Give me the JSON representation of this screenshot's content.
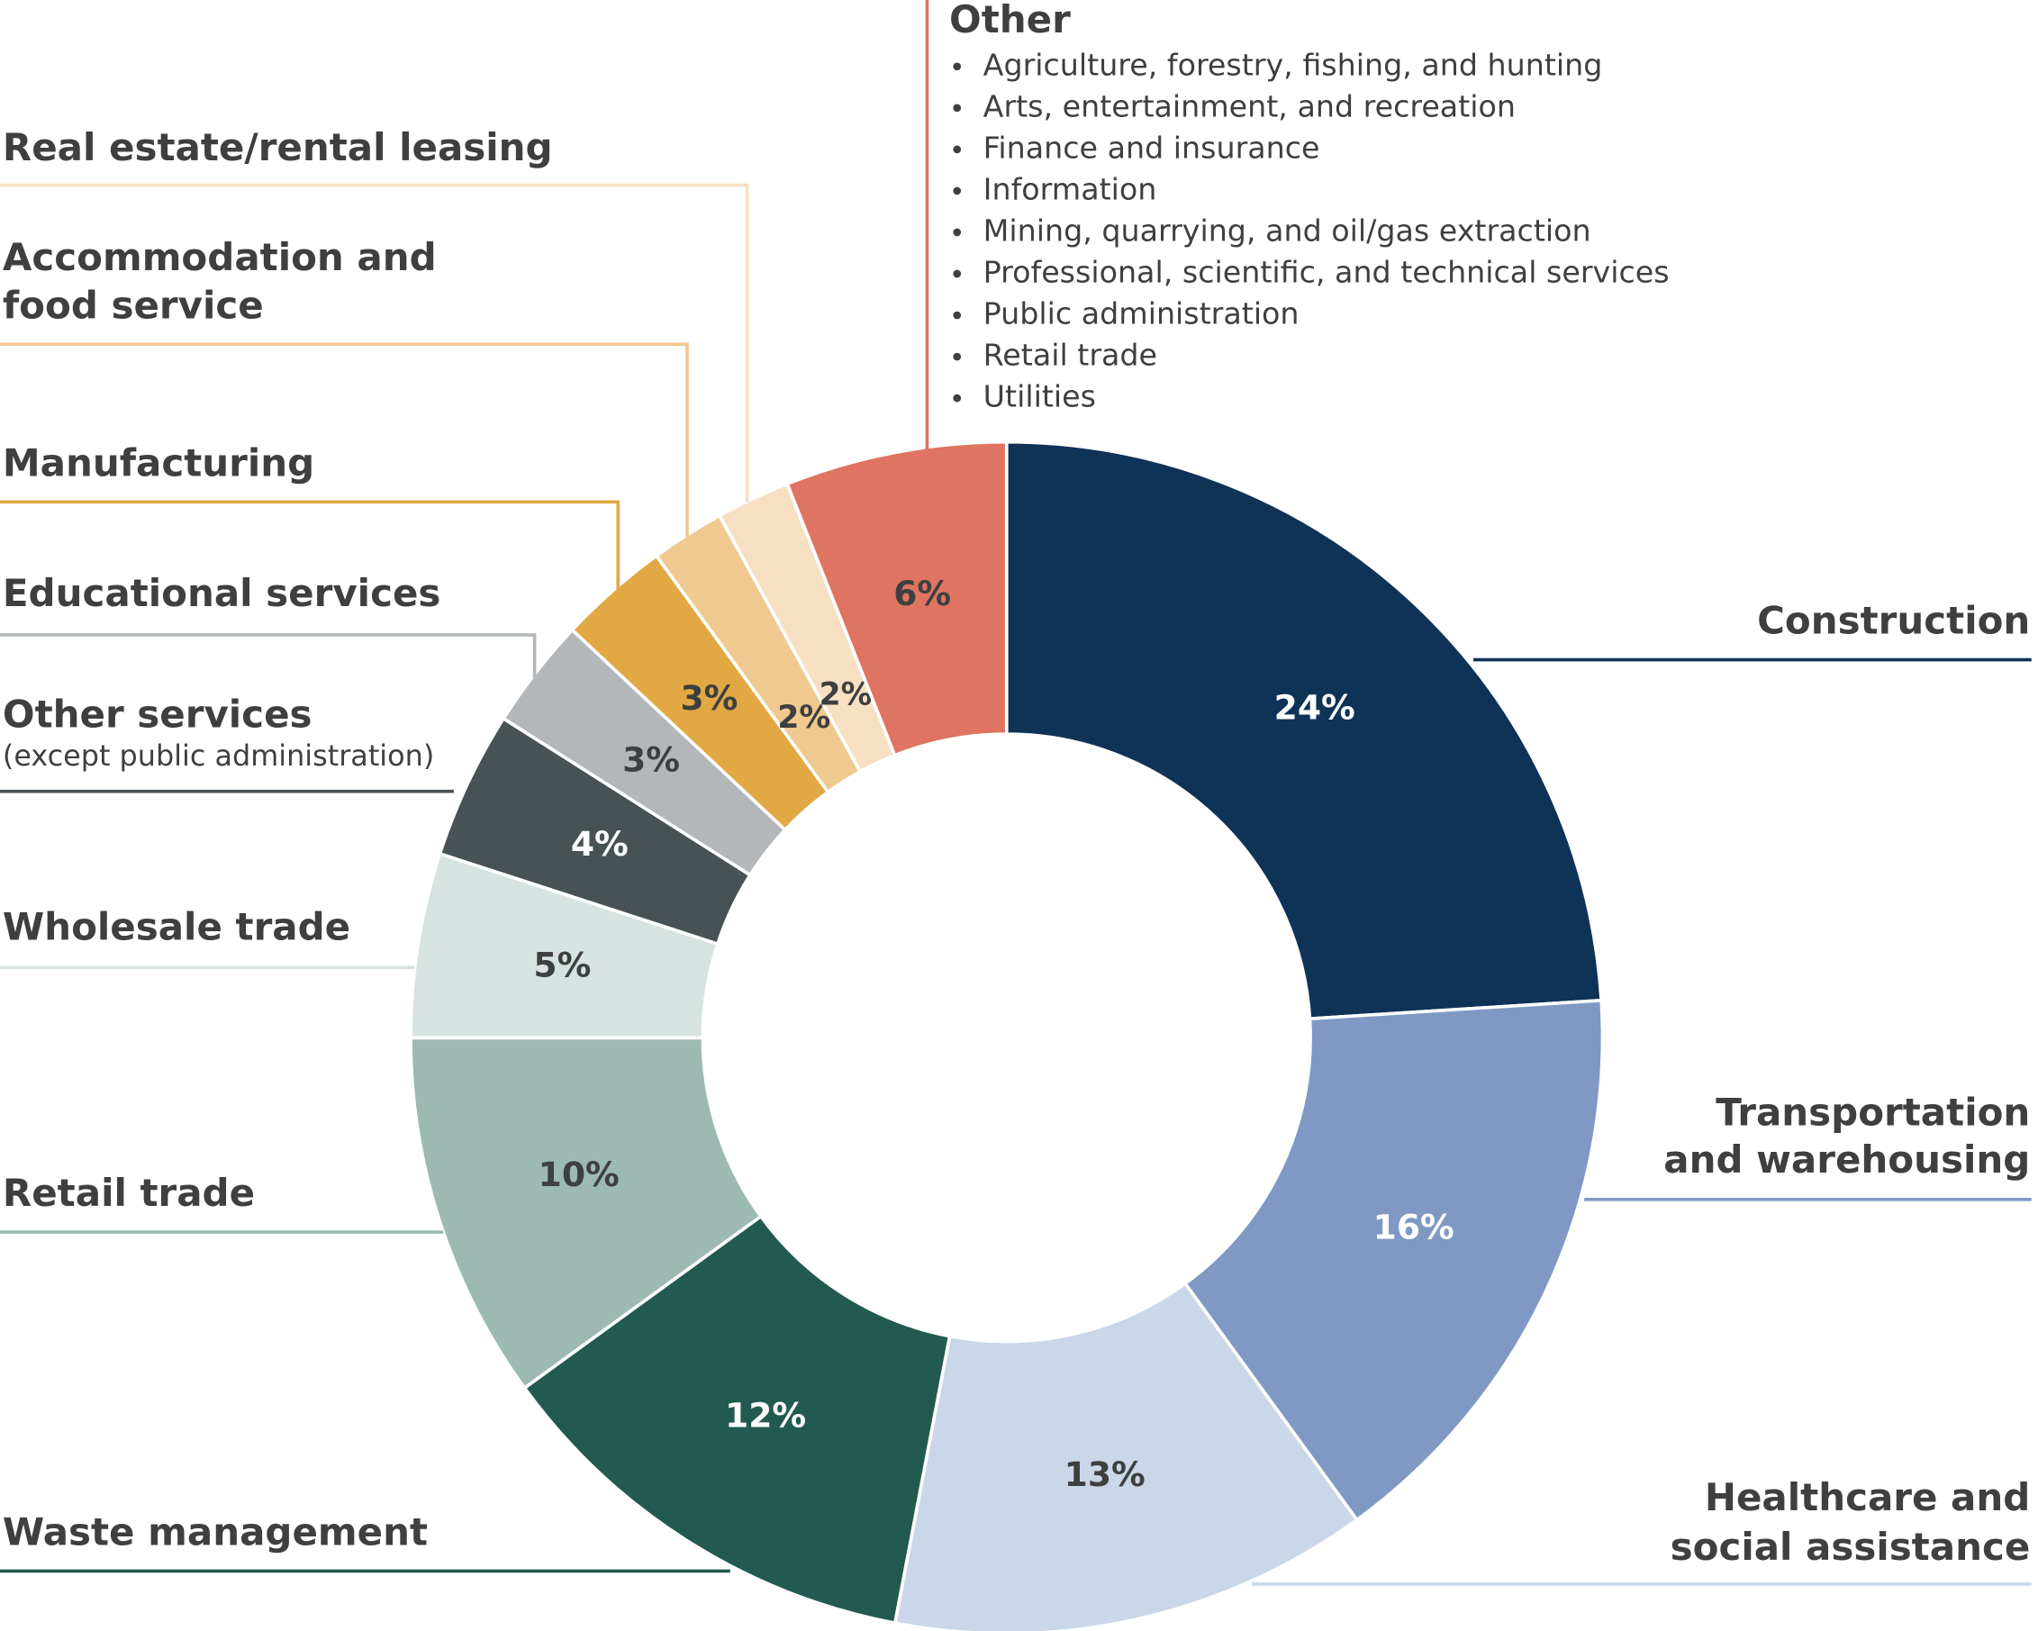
{
  "chart_data": {
    "type": "donut",
    "categories": [
      "Construction",
      "Transportation and warehousing",
      "Healthcare and social assistance",
      "Waste management",
      "Retail trade",
      "Wholesale trade",
      "Other services",
      "Educational services",
      "Manufacturing",
      "Accommodation and food service",
      "Real estate/rental leasing",
      "Other"
    ],
    "category_notes": [
      null,
      null,
      null,
      null,
      null,
      null,
      "(except public administration)",
      null,
      null,
      null,
      null,
      null
    ],
    "values": [
      24,
      16,
      13,
      12,
      10,
      5,
      4,
      3,
      3,
      2,
      2,
      6
    ],
    "value_labels": [
      "24%",
      "16%",
      "13%",
      "12%",
      "10%",
      "5%",
      "4%",
      "3%",
      "3%",
      "2%",
      "2%",
      "6%"
    ],
    "colors": [
      "#0f3257",
      "#7f99c4",
      "#c9d7e8",
      "#225a4f",
      "#9cbab2",
      "#d7e3e0",
      "#485153",
      "#b4b7ba",
      "#e2a843",
      "#efc98f",
      "#f7e0c2",
      "#de7461"
    ],
    "other_breakdown": [
      "Agriculture, forestry, fishing, and hunting",
      "Arts, entertainment, and recreation",
      "Finance and insurance",
      "Information",
      "Mining, quarrying, and oil/gas extraction",
      "Professional, scientific, and technical services",
      "Public administration",
      "Retail trade",
      "Utilities"
    ]
  }
}
